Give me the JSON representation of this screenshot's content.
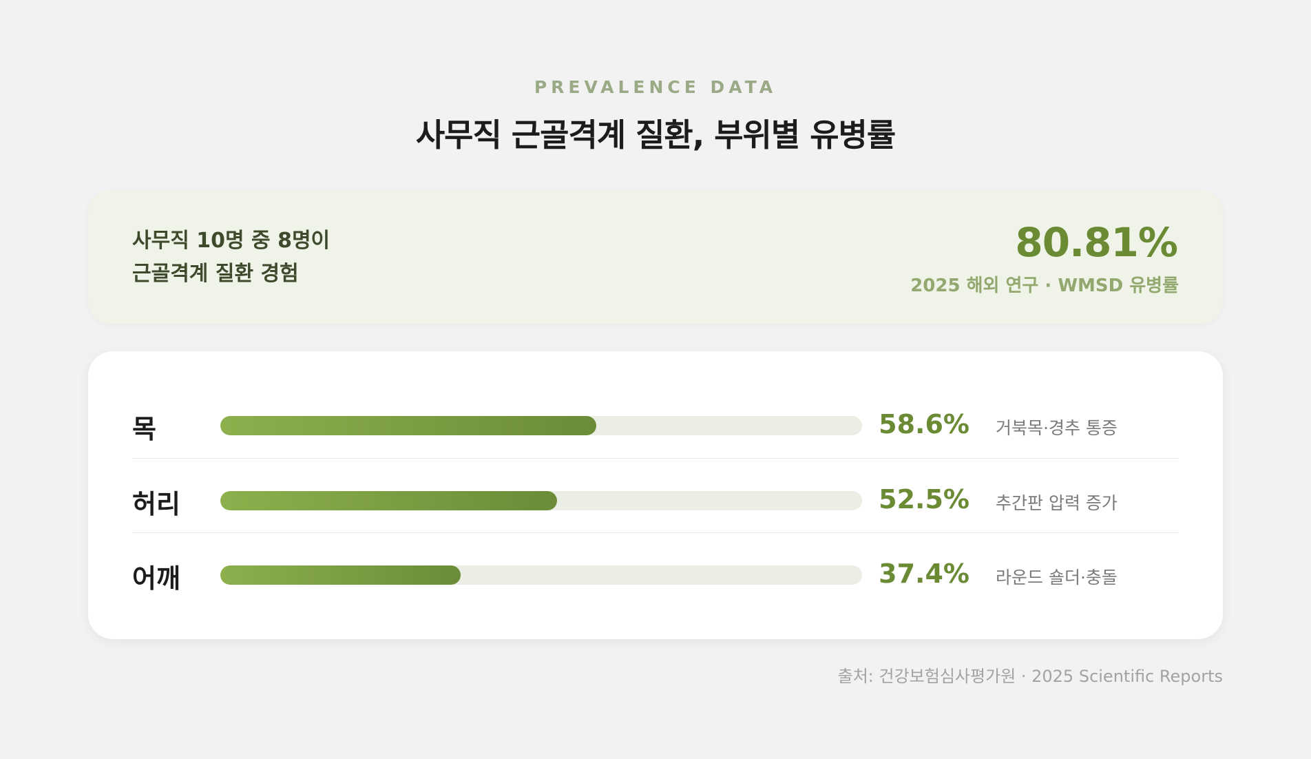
{
  "eyebrow": "PREVALENCE DATA",
  "title": "사무직 근골격계 질환, 부위별 유병률",
  "summary": {
    "line1": "사무직 10명 중 8명이",
    "line2": "근골격계 질환 경험",
    "value": "80.81%",
    "caption": "2025 해외 연구 · WMSD 유병률"
  },
  "chart_data": {
    "type": "bar",
    "orientation": "horizontal",
    "categories": [
      "목",
      "허리",
      "어깨"
    ],
    "values": [
      58.6,
      52.5,
      37.4
    ],
    "value_labels": [
      "58.6%",
      "52.5%",
      "37.4%"
    ],
    "notes": [
      "거북목·경추 통증",
      "추간판 압력 증가",
      "라운드 숄더·충돌"
    ],
    "xlim": [
      0,
      100
    ],
    "unit": "%",
    "grid": false,
    "colors": {
      "bar_start": "#8cb04c",
      "bar_end": "#6b8c38",
      "track": "#ebeee5",
      "value_text": "#6a8a34"
    }
  },
  "source": "출처: 건강보험심사평가원 · 2025 Scientific Reports"
}
